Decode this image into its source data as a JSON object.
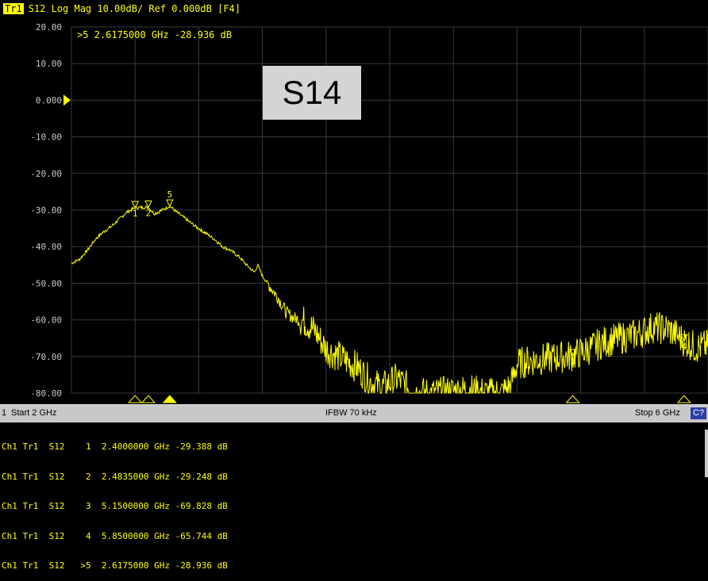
{
  "header": {
    "trace_tag": "Tr1",
    "trace_info": "S12 Log Mag 10.00dB/ Ref 0.000dB [F4]"
  },
  "active_marker_readout": ">5  2.6175000 GHz -28.936 dB",
  "overlay_label": "S14",
  "colors": {
    "trace": "#ffff00",
    "grid": "#3a3a3a",
    "background": "#000000",
    "axis_text": "#c8c8c8",
    "statusbar": "#c8c8c8"
  },
  "statusbar": {
    "channel": "1",
    "start": "Start 2 GHz",
    "ifbw": "IFBW 70 kHz",
    "stop": "Stop 6 GHz",
    "cal": "C?"
  },
  "chart_data": {
    "type": "line",
    "xlabel": "",
    "ylabel": "",
    "xlim": [
      2.0,
      6.0
    ],
    "ylim": [
      -80,
      20
    ],
    "y_ticks": [
      "20.00",
      "10.00",
      "0.000",
      "-10.00",
      "-20.00",
      "-30.00",
      "-40.00",
      "-50.00",
      "-60.00",
      "-70.00",
      "-80.00"
    ],
    "grid": true,
    "series": [
      {
        "points": [
          [
            2.0,
            -44.5
          ],
          [
            2.05,
            -43.5
          ],
          [
            2.1,
            -41.0
          ],
          [
            2.15,
            -38.0
          ],
          [
            2.2,
            -36.0
          ],
          [
            2.25,
            -34.5
          ],
          [
            2.3,
            -32.5
          ],
          [
            2.35,
            -30.5
          ],
          [
            2.4,
            -29.4
          ],
          [
            2.4835,
            -29.2
          ],
          [
            2.52,
            -31.0
          ],
          [
            2.57,
            -30.0
          ],
          [
            2.6175,
            -28.9
          ],
          [
            2.66,
            -30.5
          ],
          [
            2.72,
            -32.5
          ],
          [
            2.78,
            -34.5
          ],
          [
            2.85,
            -36.5
          ],
          [
            2.9,
            -38.0
          ],
          [
            2.95,
            -40.0
          ],
          [
            3.0,
            -41.0
          ],
          [
            3.06,
            -43.0
          ],
          [
            3.1,
            -45.0
          ],
          [
            3.15,
            -47.0
          ],
          [
            3.17,
            -45.0
          ],
          [
            3.2,
            -48.0
          ],
          [
            3.25,
            -51.0
          ],
          [
            3.3,
            -54.0
          ],
          [
            3.35,
            -58.0
          ],
          [
            3.4,
            -59.5
          ],
          [
            3.47,
            -60.5
          ],
          [
            3.53,
            -63.0
          ],
          [
            3.6,
            -68.0
          ],
          [
            3.7,
            -70.5
          ],
          [
            3.8,
            -73.0
          ],
          [
            3.88,
            -77.0
          ],
          [
            3.95,
            -78.5
          ],
          [
            4.05,
            -76.0
          ],
          [
            4.15,
            -80.0
          ],
          [
            4.3,
            -80.0
          ],
          [
            4.5,
            -79.0
          ],
          [
            4.6,
            -80.0
          ],
          [
            4.7,
            -80.0
          ],
          [
            4.76,
            -78.0
          ],
          [
            4.8,
            -72.0
          ],
          [
            4.9,
            -71.0
          ],
          [
            5.0,
            -70.5
          ],
          [
            5.1,
            -70.0
          ],
          [
            5.15,
            -69.8
          ],
          [
            5.25,
            -68.0
          ],
          [
            5.35,
            -66.0
          ],
          [
            5.45,
            -65.0
          ],
          [
            5.55,
            -64.0
          ],
          [
            5.65,
            -62.0
          ],
          [
            5.75,
            -62.5
          ],
          [
            5.85,
            -65.7
          ],
          [
            5.92,
            -67.5
          ],
          [
            6.0,
            -67.0
          ]
        ]
      }
    ],
    "markers": [
      {
        "id": "1",
        "freq_ghz": 2.4,
        "value_db": -29.388
      },
      {
        "id": "2",
        "freq_ghz": 2.4835,
        "value_db": -29.248
      },
      {
        "id": "3",
        "freq_ghz": 5.15,
        "value_db": -69.828
      },
      {
        "id": "4",
        "freq_ghz": 5.85,
        "value_db": -65.744
      },
      {
        "id": "5",
        "freq_ghz": 2.6175,
        "value_db": -28.936
      }
    ],
    "marker_table": [
      {
        "ch": "Ch1",
        "tr": "Tr1",
        "param": "S12",
        "id": "1",
        "freq": "2.4000000 GHz",
        "value": "-29.388 dB"
      },
      {
        "ch": "Ch1",
        "tr": "Tr1",
        "param": "S12",
        "id": "2",
        "freq": "2.4835000 GHz",
        "value": "-29.248 dB"
      },
      {
        "ch": "Ch1",
        "tr": "Tr1",
        "param": "S12",
        "id": "3",
        "freq": "5.1500000 GHz",
        "value": "-69.828 dB"
      },
      {
        "ch": "Ch1",
        "tr": "Tr1",
        "param": "S12",
        "id": "4",
        "freq": "5.8500000 GHz",
        "value": "-65.744 dB"
      },
      {
        "ch": "Ch1",
        "tr": "Tr1",
        "param": "S12",
        "id": ">5",
        "freq": "2.6175000 GHz",
        "value": "-28.936 dB"
      }
    ]
  }
}
